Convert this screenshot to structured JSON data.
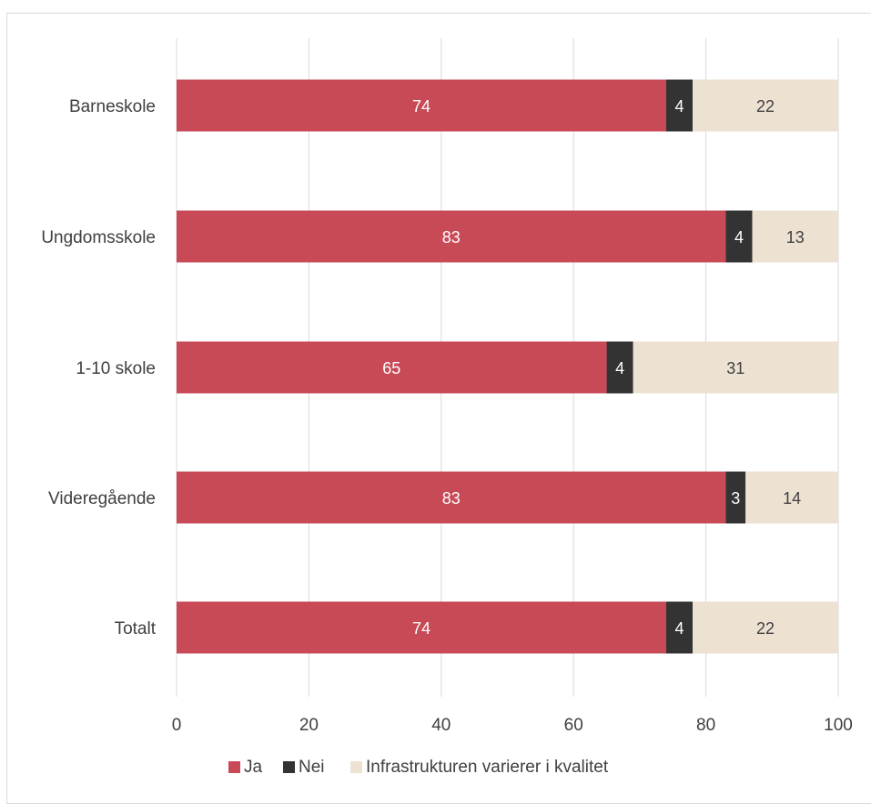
{
  "chart_data": {
    "type": "bar",
    "orientation": "horizontal",
    "stacked": true,
    "categories": [
      "Barneskole",
      "Ungdomsskole",
      "1-10 skole",
      "Videregående",
      "Totalt"
    ],
    "series": [
      {
        "name": "Ja",
        "color": "#c84a57",
        "label_color": "#ffffff",
        "values": [
          74,
          83,
          65,
          83,
          74
        ]
      },
      {
        "name": "Nei",
        "color": "#333333",
        "label_color": "#ffffff",
        "values": [
          4,
          4,
          4,
          3,
          4
        ]
      },
      {
        "name": "Infrastrukturen varierer i kvalitet",
        "color": "#ede1d2",
        "label_color": "#404040",
        "values": [
          22,
          13,
          31,
          14,
          22
        ]
      }
    ],
    "xlim": [
      0,
      100
    ],
    "xticks": [
      0,
      20,
      40,
      60,
      80,
      100
    ],
    "grid": true,
    "legend_position": "bottom"
  }
}
